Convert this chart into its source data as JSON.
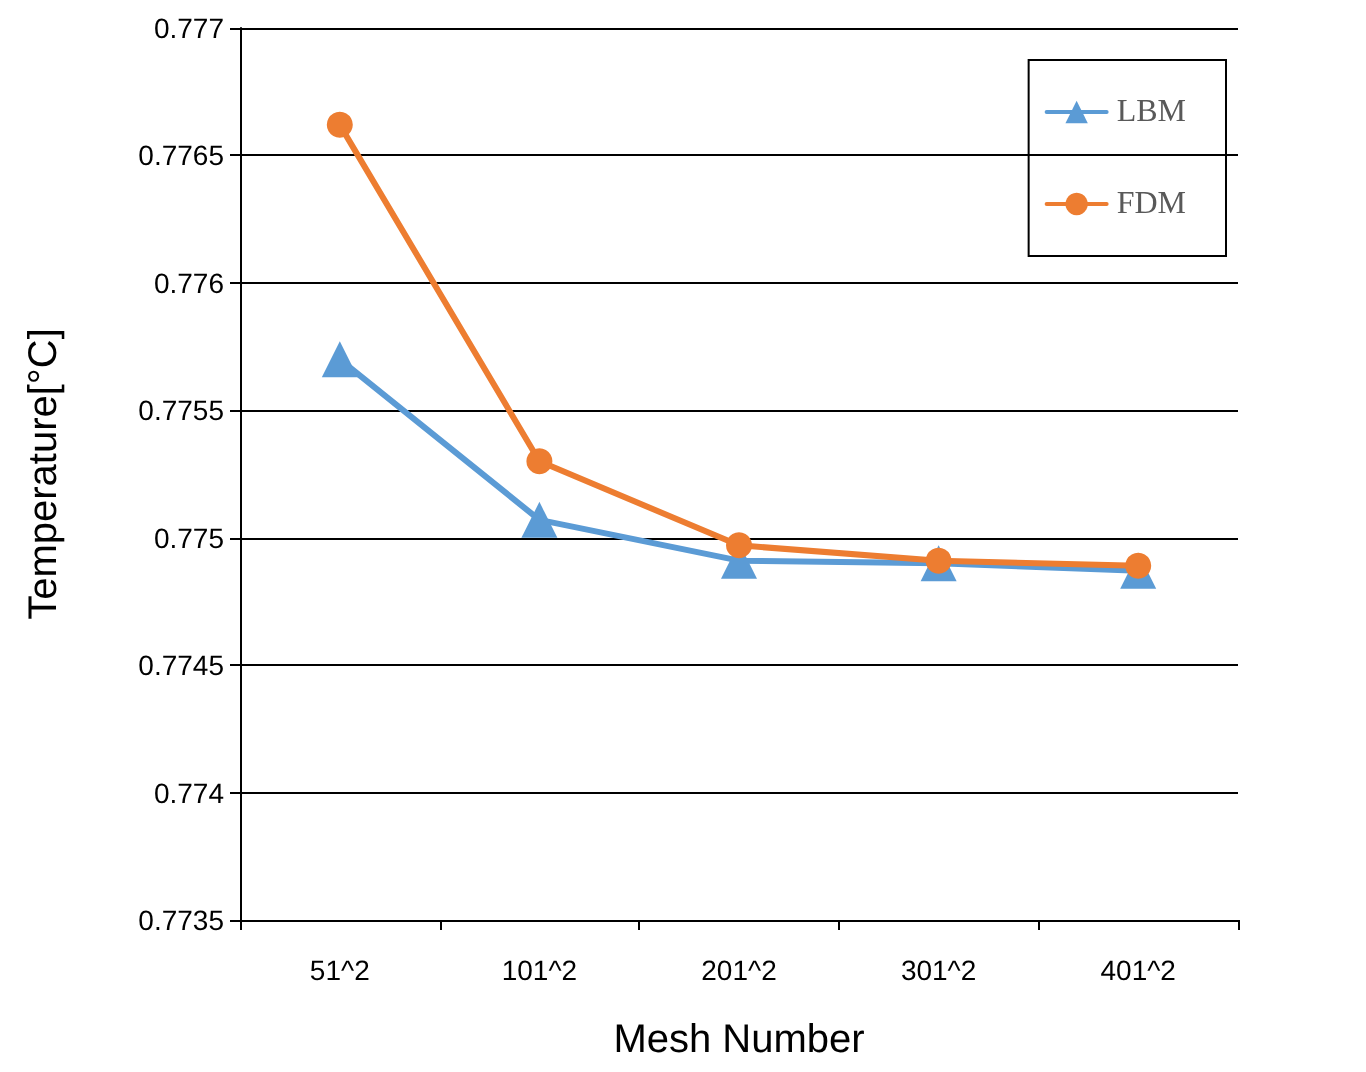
{
  "chart_data": {
    "type": "line",
    "xlabel": "Mesh Number",
    "ylabel": "Temperature[°C]",
    "categories": [
      "51^2",
      "101^2",
      "201^2",
      "301^2",
      "401^2"
    ],
    "series": [
      {
        "name": "LBM",
        "color": "#5b9bd5",
        "marker": "triangle",
        "values": [
          0.7757,
          0.77507,
          0.77491,
          0.7749,
          0.77487
        ]
      },
      {
        "name": "FDM",
        "color": "#ed7d31",
        "marker": "circle",
        "values": [
          0.77662,
          0.7753,
          0.77497,
          0.77491,
          0.77489
        ]
      }
    ],
    "ylim": [
      0.7735,
      0.777
    ],
    "yticks": [
      0.7735,
      0.774,
      0.7745,
      0.775,
      0.7755,
      0.776,
      0.7765,
      0.777
    ],
    "grid": "y",
    "legend": "top right",
    "line_style": "solid"
  }
}
